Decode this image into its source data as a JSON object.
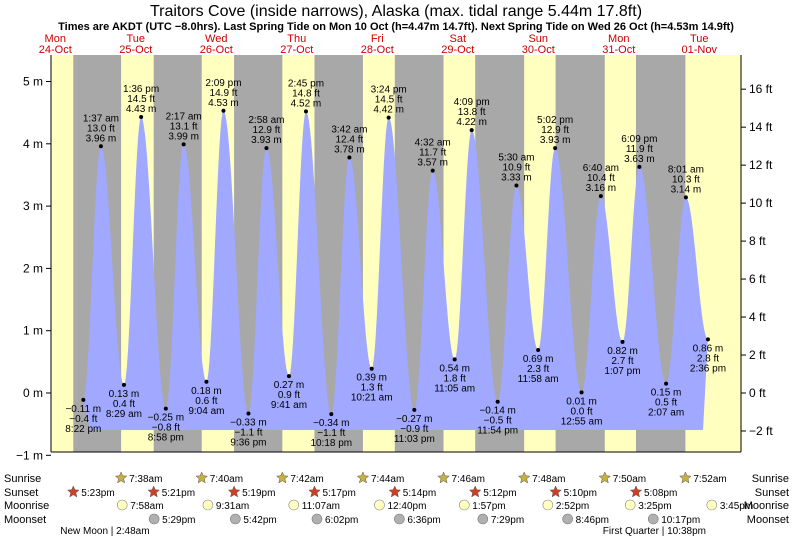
{
  "chart_data": {
    "type": "area",
    "title": "Traitors Cove (inside narrows), Alaska (max. tidal range 5.44m 17.8ft)",
    "subtitle": "Times are AKDT (UTC −8.0hrs). Last Spring Tide on Mon 10 Oct (h=4.47m 14.7ft). Next Spring Tide on Wed 26 Oct (h=4.53m 14.9ft)",
    "left_axis": {
      "unit": "m",
      "ylim": [
        -1.0,
        5.44
      ],
      "ticks": [
        "−1 m",
        "0 m",
        "1 m",
        "2 m",
        "3 m",
        "4 m",
        "5 m"
      ]
    },
    "right_axis": {
      "unit": "ft",
      "ticks": [
        "−2 ft",
        "0 ft",
        "2 ft",
        "4 ft",
        "6 ft",
        "8 ft",
        "10 ft",
        "12 ft",
        "14 ft",
        "16 ft"
      ]
    },
    "days": [
      {
        "dow": "Mon",
        "date": "24-Oct"
      },
      {
        "dow": "Tue",
        "date": "25-Oct"
      },
      {
        "dow": "Wed",
        "date": "26-Oct"
      },
      {
        "dow": "Thu",
        "date": "27-Oct"
      },
      {
        "dow": "Fri",
        "date": "28-Oct"
      },
      {
        "dow": "Sat",
        "date": "29-Oct"
      },
      {
        "dow": "Sun",
        "date": "30-Oct"
      },
      {
        "dow": "Mon",
        "date": "31-Oct"
      },
      {
        "dow": "Tue",
        "date": "01-Nov"
      }
    ],
    "tides": [
      {
        "type": "low",
        "day": 0,
        "time": "8:22 pm",
        "m": -0.11,
        "m_label": "−0.11 m",
        "ft_label": "−0.4 ft"
      },
      {
        "type": "high",
        "day": 1,
        "time": "1:37 am",
        "m": 3.96,
        "m_label": "3.96 m",
        "ft_label": "13.0 ft"
      },
      {
        "type": "low",
        "day": 1,
        "time": "8:29 am",
        "m": 0.13,
        "m_label": "0.13 m",
        "ft_label": "0.4 ft"
      },
      {
        "type": "high",
        "day": 1,
        "time": "1:36 pm",
        "m": 4.43,
        "m_label": "4.43 m",
        "ft_label": "14.5 ft"
      },
      {
        "type": "low",
        "day": 1,
        "time": "8:58 pm",
        "m": -0.25,
        "m_label": "−0.25 m",
        "ft_label": "−0.8 ft"
      },
      {
        "type": "high",
        "day": 2,
        "time": "2:17 am",
        "m": 3.99,
        "m_label": "3.99 m",
        "ft_label": "13.1 ft"
      },
      {
        "type": "low",
        "day": 2,
        "time": "9:04 am",
        "m": 0.18,
        "m_label": "0.18 m",
        "ft_label": "0.6 ft"
      },
      {
        "type": "high",
        "day": 2,
        "time": "2:09 pm",
        "m": 4.53,
        "m_label": "4.53 m",
        "ft_label": "14.9 ft"
      },
      {
        "type": "low",
        "day": 2,
        "time": "9:36 pm",
        "m": -0.33,
        "m_label": "−0.33 m",
        "ft_label": "−1.1 ft"
      },
      {
        "type": "high",
        "day": 3,
        "time": "2:58 am",
        "m": 3.93,
        "m_label": "3.93 m",
        "ft_label": "12.9 ft"
      },
      {
        "type": "low",
        "day": 3,
        "time": "9:41 am",
        "m": 0.27,
        "m_label": "0.27 m",
        "ft_label": "0.9 ft"
      },
      {
        "type": "high",
        "day": 3,
        "time": "2:45 pm",
        "m": 4.52,
        "m_label": "4.52 m",
        "ft_label": "14.8 ft"
      },
      {
        "type": "low",
        "day": 3,
        "time": "10:18 pm",
        "m": -0.34,
        "m_label": "−0.34 m",
        "ft_label": "−1.1 ft"
      },
      {
        "type": "high",
        "day": 4,
        "time": "3:42 am",
        "m": 3.78,
        "m_label": "3.78 m",
        "ft_label": "12.4 ft"
      },
      {
        "type": "low",
        "day": 4,
        "time": "10:21 am",
        "m": 0.39,
        "m_label": "0.39 m",
        "ft_label": "1.3 ft"
      },
      {
        "type": "high",
        "day": 4,
        "time": "3:24 pm",
        "m": 4.42,
        "m_label": "4.42 m",
        "ft_label": "14.5 ft"
      },
      {
        "type": "low",
        "day": 4,
        "time": "11:03 pm",
        "m": -0.27,
        "m_label": "−0.27 m",
        "ft_label": "−0.9 ft"
      },
      {
        "type": "high",
        "day": 5,
        "time": "4:32 am",
        "m": 3.57,
        "m_label": "3.57 m",
        "ft_label": "11.7 ft"
      },
      {
        "type": "low",
        "day": 5,
        "time": "11:05 am",
        "m": 0.54,
        "m_label": "0.54 m",
        "ft_label": "1.8 ft"
      },
      {
        "type": "high",
        "day": 5,
        "time": "4:09 pm",
        "m": 4.22,
        "m_label": "4.22 m",
        "ft_label": "13.8 ft"
      },
      {
        "type": "low",
        "day": 5,
        "time": "11:54 pm",
        "m": -0.14,
        "m_label": "−0.14 m",
        "ft_label": "−0.5 ft"
      },
      {
        "type": "high",
        "day": 6,
        "time": "5:30 am",
        "m": 3.33,
        "m_label": "3.33 m",
        "ft_label": "10.9 ft"
      },
      {
        "type": "low",
        "day": 6,
        "time": "11:58 am",
        "m": 0.69,
        "m_label": "0.69 m",
        "ft_label": "2.3 ft"
      },
      {
        "type": "high",
        "day": 6,
        "time": "5:02 pm",
        "m": 3.93,
        "m_label": "3.93 m",
        "ft_label": "12.9 ft"
      },
      {
        "type": "low",
        "day": 7,
        "time": "12:55 am",
        "m": 0.01,
        "m_label": "0.01 m",
        "ft_label": "0.0 ft"
      },
      {
        "type": "high",
        "day": 7,
        "time": "6:40 am",
        "m": 3.16,
        "m_label": "3.16 m",
        "ft_label": "10.4 ft"
      },
      {
        "type": "low",
        "day": 7,
        "time": "1:07 pm",
        "m": 0.82,
        "m_label": "0.82 m",
        "ft_label": "2.7 ft"
      },
      {
        "type": "high",
        "day": 7,
        "time": "6:09 pm",
        "m": 3.63,
        "m_label": "3.63 m",
        "ft_label": "11.9 ft"
      },
      {
        "type": "low",
        "day": 8,
        "time": "2:07 am",
        "m": 0.15,
        "m_label": "0.15 m",
        "ft_label": "0.5 ft"
      },
      {
        "type": "high",
        "day": 8,
        "time": "8:01 am",
        "m": 3.14,
        "m_label": "3.14 m",
        "ft_label": "10.3 ft"
      },
      {
        "type": "low",
        "day": 8,
        "time": "2:36 pm",
        "m": 0.86,
        "m_label": "0.86 m",
        "ft_label": "2.8 ft"
      }
    ],
    "daylight": [
      {
        "day": 0,
        "sunrise": "",
        "sunset": "5:23pm"
      },
      {
        "day": 1,
        "sunrise": "7:38am",
        "sunset": "5:21pm"
      },
      {
        "day": 2,
        "sunrise": "7:40am",
        "sunset": "5:19pm"
      },
      {
        "day": 3,
        "sunrise": "7:42am",
        "sunset": "5:17pm"
      },
      {
        "day": 4,
        "sunrise": "7:44am",
        "sunset": "5:14pm"
      },
      {
        "day": 5,
        "sunrise": "7:46am",
        "sunset": "5:12pm"
      },
      {
        "day": 6,
        "sunrise": "7:48am",
        "sunset": "5:10pm"
      },
      {
        "day": 7,
        "sunrise": "7:50am",
        "sunset": "5:08pm"
      },
      {
        "day": 8,
        "sunrise": "7:52am",
        "sunset": ""
      }
    ],
    "moonrises": [
      {
        "day": 1,
        "time": "7:58am"
      },
      {
        "day": 2,
        "time": "9:31am"
      },
      {
        "day": 3,
        "time": "11:07am"
      },
      {
        "day": 4,
        "time": "12:40pm"
      },
      {
        "day": 5,
        "time": "1:57pm"
      },
      {
        "day": 6,
        "time": "2:52pm"
      },
      {
        "day": 7,
        "time": "3:25pm"
      },
      {
        "day": 8,
        "time": "3:45pm"
      }
    ],
    "moonsets": [
      {
        "day": 1,
        "time": "5:29pm"
      },
      {
        "day": 2,
        "time": "5:42pm"
      },
      {
        "day": 3,
        "time": "6:02pm"
      },
      {
        "day": 4,
        "time": "6:36pm"
      },
      {
        "day": 5,
        "time": "7:29pm"
      },
      {
        "day": 6,
        "time": "8:46pm"
      },
      {
        "day": 7,
        "time": "10:17pm"
      }
    ],
    "row_labels": {
      "sunrise": "Sunrise",
      "sunset": "Sunset",
      "moonrise": "Moonrise",
      "moonset": "Moonset"
    },
    "phases": [
      {
        "day": 1,
        "time_hr": 2.8,
        "text": "New Moon | 2:48am"
      },
      {
        "day": 7,
        "time_hr": 22.63,
        "text": "First Quarter | 10:38pm"
      }
    ],
    "colors": {
      "water": "#a0a8ff",
      "day": "#ffffc0",
      "night": "#a8a8a8",
      "sun": "#c8b040",
      "sunset": "#d04020",
      "moonrise": "#ffffc0",
      "moonset": "#b0b0b0",
      "day_label": "#cc0000"
    }
  }
}
